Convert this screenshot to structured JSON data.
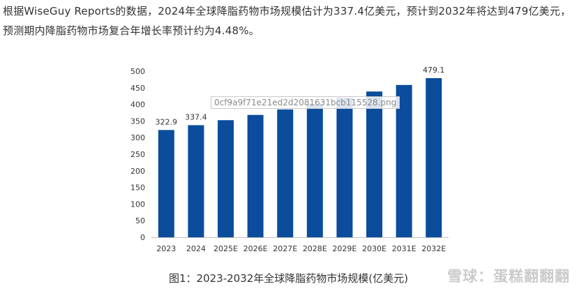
{
  "article": {
    "paragraph": "根据WiseGuy Reports的数据，2024年全球降脂药物市场规模估计为337.4亿美元，预计到2032年将达到479亿美元，预测期内降脂药物市场复合年增长率预计约为4.48%。"
  },
  "image": {
    "filename": "0cf9a9f71e21ed2d2081631bcb115528.png",
    "caption": "图1：2023-2032年全球降脂药物市场规模(亿美元)",
    "watermark": "雪球：蛋糕翻翻翻"
  },
  "chart_data": {
    "type": "bar",
    "title": "",
    "xlabel": "",
    "ylabel": "",
    "categories": [
      "2023",
      "2024",
      "2025E",
      "2026E",
      "2027E",
      "2028E",
      "2029E",
      "2030E",
      "2031E",
      "2032E"
    ],
    "values": [
      322.9,
      337.4,
      352.5,
      368.3,
      384.8,
      402.0,
      420.0,
      438.8,
      458.5,
      479.1
    ],
    "data_labels": [
      "322.9",
      "337.4",
      "",
      "",
      "",
      "",
      "",
      "",
      "",
      "479.1"
    ],
    "ylim": [
      0,
      500
    ],
    "yticks": [
      0,
      50,
      100,
      150,
      200,
      250,
      300,
      350,
      400,
      450,
      500
    ],
    "grid": false,
    "legend": "none",
    "bar_color": "#0b4c9c"
  }
}
